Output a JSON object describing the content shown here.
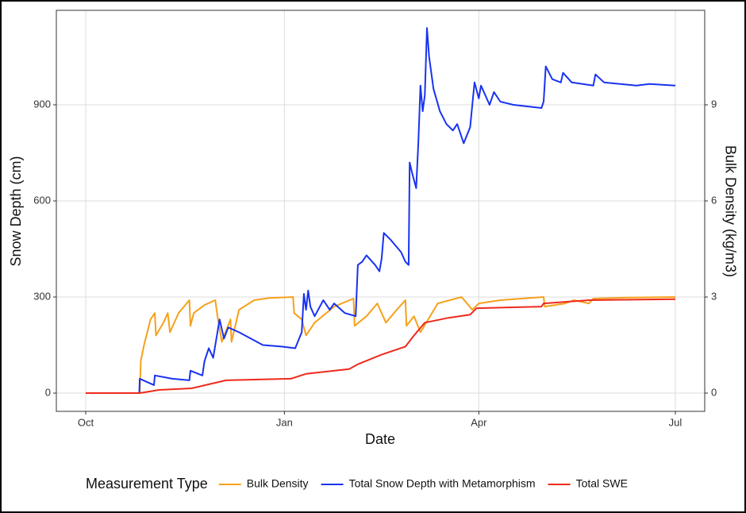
{
  "chart_data": {
    "type": "line",
    "x_label": "Date",
    "y_label": "Snow Depth (cm)",
    "y2_label": "Bulk Density (kg/m3)",
    "legend_title": "Measurement Type",
    "legend_position": "bottom",
    "grid": true,
    "xlim": [
      -13.6,
      286.6
    ],
    "xticks": [
      {
        "value": 0,
        "label": "Oct"
      },
      {
        "value": 92,
        "label": "Jan"
      },
      {
        "value": 182,
        "label": "Apr"
      },
      {
        "value": 273,
        "label": "Jul"
      }
    ],
    "ylim": [
      -57,
      1195
    ],
    "yticks": [
      0,
      300,
      600,
      900
    ],
    "y2lim": [
      -0.57,
      11.95
    ],
    "y2ticks": [
      0,
      3,
      6,
      9
    ],
    "series": [
      {
        "name": "Bulk Density",
        "color": "#F5A11C",
        "axis": "y2",
        "x": [
          0,
          25,
          25.5,
          27,
          30,
          32,
          32.5,
          36,
          38,
          39,
          43,
          48,
          48.5,
          50,
          55,
          60,
          61,
          63,
          67,
          67.5,
          71,
          78,
          85,
          96,
          96.5,
          100,
          102,
          106,
          115,
          124,
          124.5,
          130,
          135,
          139,
          144,
          148,
          148.5,
          152,
          155,
          163,
          174,
          179,
          182,
          192,
          212,
          212.5,
          222,
          226,
          233,
          235,
          250,
          273
        ],
        "values": [
          0,
          0,
          1.0,
          1.5,
          2.3,
          2.5,
          1.8,
          2.2,
          2.5,
          1.9,
          2.5,
          2.9,
          2.1,
          2.5,
          2.75,
          2.9,
          2.4,
          1.6,
          2.3,
          1.6,
          2.6,
          2.9,
          2.97,
          3.0,
          2.5,
          2.3,
          1.8,
          2.2,
          2.7,
          2.95,
          2.1,
          2.4,
          2.8,
          2.2,
          2.6,
          2.9,
          2.1,
          2.4,
          1.9,
          2.8,
          3.0,
          2.6,
          2.8,
          2.9,
          3.0,
          2.7,
          2.8,
          2.9,
          2.8,
          2.95,
          2.98,
          3.0
        ]
      },
      {
        "name": "Total Snow Depth with Metamorphism",
        "color": "#1833F0",
        "x": [
          0,
          24.8,
          25,
          31.6,
          32,
          40,
          48,
          48.5,
          54,
          55,
          57,
          59,
          60,
          62,
          64,
          66,
          71,
          82,
          91,
          97,
          100,
          101,
          102,
          103,
          104,
          106,
          110,
          113,
          115,
          120,
          125,
          126,
          128,
          130,
          134,
          136,
          137,
          138,
          141,
          146,
          148,
          149.5,
          150,
          151,
          153,
          154,
          155,
          156,
          157,
          158,
          159,
          161,
          164,
          167,
          170,
          172,
          175,
          178,
          180,
          182,
          183,
          187,
          189,
          192,
          198,
          211,
          212,
          213,
          216,
          220,
          221,
          225,
          235,
          236,
          240,
          255,
          261,
          273
        ],
        "values": [
          0,
          0,
          45,
          25,
          55,
          45,
          40,
          70,
          55,
          100,
          140,
          110,
          150,
          230,
          170,
          205,
          190,
          150,
          145,
          140,
          190,
          310,
          260,
          320,
          270,
          240,
          290,
          260,
          280,
          250,
          240,
          400,
          410,
          430,
          400,
          380,
          420,
          500,
          480,
          440,
          410,
          400,
          720,
          690,
          640,
          780,
          960,
          880,
          930,
          1140,
          1050,
          950,
          880,
          840,
          820,
          840,
          780,
          830,
          970,
          920,
          960,
          900,
          940,
          910,
          900,
          890,
          910,
          1020,
          980,
          970,
          1000,
          970,
          960,
          995,
          970,
          960,
          965,
          960
        ]
      },
      {
        "name": "Total SWE",
        "color": "#EE2A1C",
        "x": [
          0,
          25,
          34,
          49,
          65,
          95,
          102,
          122,
          126,
          137,
          148,
          152,
          157,
          168,
          178,
          181,
          211,
          212,
          233,
          273
        ],
        "values": [
          0,
          0,
          10,
          15,
          40,
          45,
          60,
          75,
          90,
          120,
          145,
          180,
          220,
          235,
          245,
          265,
          270,
          280,
          290,
          293
        ]
      }
    ]
  }
}
